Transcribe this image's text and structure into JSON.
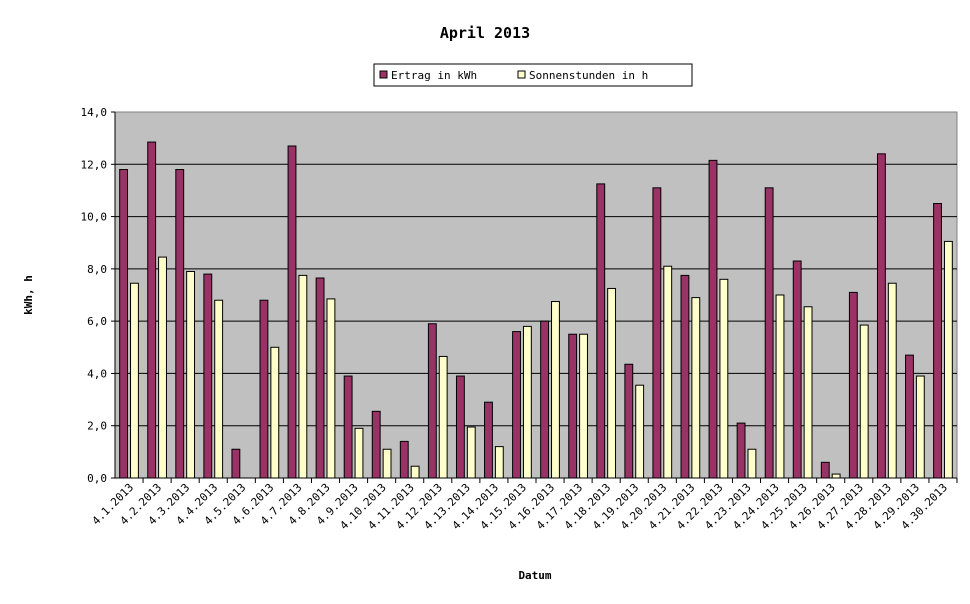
{
  "chart_data": {
    "type": "bar",
    "title": "April 2013",
    "xlabel": "Datum",
    "ylabel": "kWh, h",
    "ylim": [
      0,
      14
    ],
    "yticks": [
      "0,0",
      "2,0",
      "4,0",
      "6,0",
      "8,0",
      "10,0",
      "12,0",
      "14,0"
    ],
    "grid": true,
    "legend_position": "top",
    "categories": [
      "4.1.2013",
      "4.2.2013",
      "4.3.2013",
      "4.4.2013",
      "4.5.2013",
      "4.6.2013",
      "4.7.2013",
      "4.8.2013",
      "4.9.2013",
      "4.10.2013",
      "4.11.2013",
      "4.12.2013",
      "4.13.2013",
      "4.14.2013",
      "4.15.2013",
      "4.16.2013",
      "4.17.2013",
      "4.18.2013",
      "4.19.2013",
      "4.20.2013",
      "4.21.2013",
      "4.22.2013",
      "4.23.2013",
      "4.24.2013",
      "4.25.2013",
      "4.26.2013",
      "4.27.2013",
      "4.28.2013",
      "4.29.2013",
      "4.30.2013"
    ],
    "series": [
      {
        "name": "Ertrag in kWh",
        "color": "#993366",
        "values": [
          11.8,
          12.85,
          11.8,
          7.8,
          1.1,
          6.8,
          12.7,
          7.65,
          3.9,
          2.55,
          1.4,
          5.9,
          3.9,
          2.9,
          5.6,
          6.0,
          5.5,
          11.25,
          4.35,
          11.1,
          7.75,
          12.15,
          2.1,
          11.1,
          8.3,
          0.6,
          7.1,
          12.4,
          4.7,
          10.5
        ]
      },
      {
        "name": "Sonnenstunden in h",
        "color": "#ffffcc",
        "values": [
          7.45,
          8.45,
          7.9,
          6.8,
          0.0,
          5.0,
          7.75,
          6.85,
          1.9,
          1.1,
          0.45,
          4.65,
          1.95,
          1.2,
          5.8,
          6.75,
          5.5,
          7.25,
          3.55,
          8.1,
          6.9,
          7.6,
          1.1,
          7.0,
          6.55,
          0.15,
          5.85,
          7.45,
          3.9,
          9.05
        ]
      }
    ],
    "colors": {
      "plot_background": "#c0c0c0",
      "gridline": "#000000",
      "bar_outline": "#000000"
    }
  }
}
